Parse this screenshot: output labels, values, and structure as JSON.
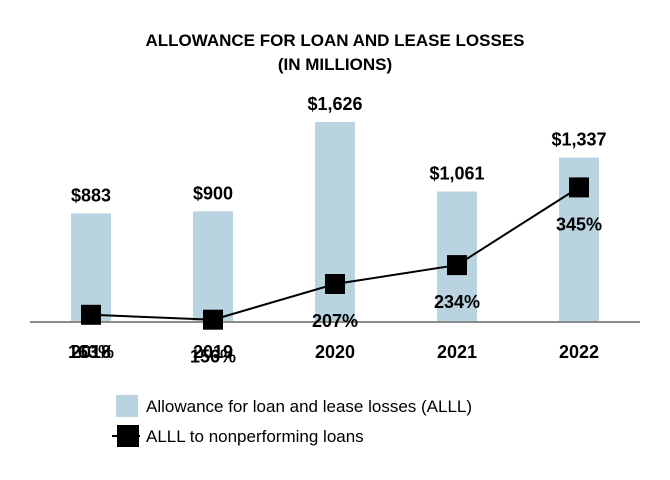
{
  "chart_data": {
    "type": "bar",
    "title": "ALLOWANCE FOR LOAN AND LEASE LOSSES",
    "subtitle": "(IN MILLIONS)",
    "categories": [
      "2018",
      "2019",
      "2020",
      "2021",
      "2022"
    ],
    "series": [
      {
        "name": "Allowance for loan and lease losses (ALLL)",
        "type": "bar",
        "values": [
          883,
          900,
          1626,
          1061,
          1337
        ],
        "labels": [
          "$883",
          "$900",
          "$1,626",
          "$1,061",
          "$1,337"
        ],
        "color": "#b9d3e0"
      },
      {
        "name": "ALLL to nonperforming loans",
        "type": "line",
        "values": [
          163,
          156,
          207,
          234,
          345
        ],
        "labels": [
          "163%",
          "156%",
          "207%",
          "234%",
          "345%"
        ],
        "color": "#000000"
      }
    ],
    "legend": "bottom",
    "grid": false
  }
}
